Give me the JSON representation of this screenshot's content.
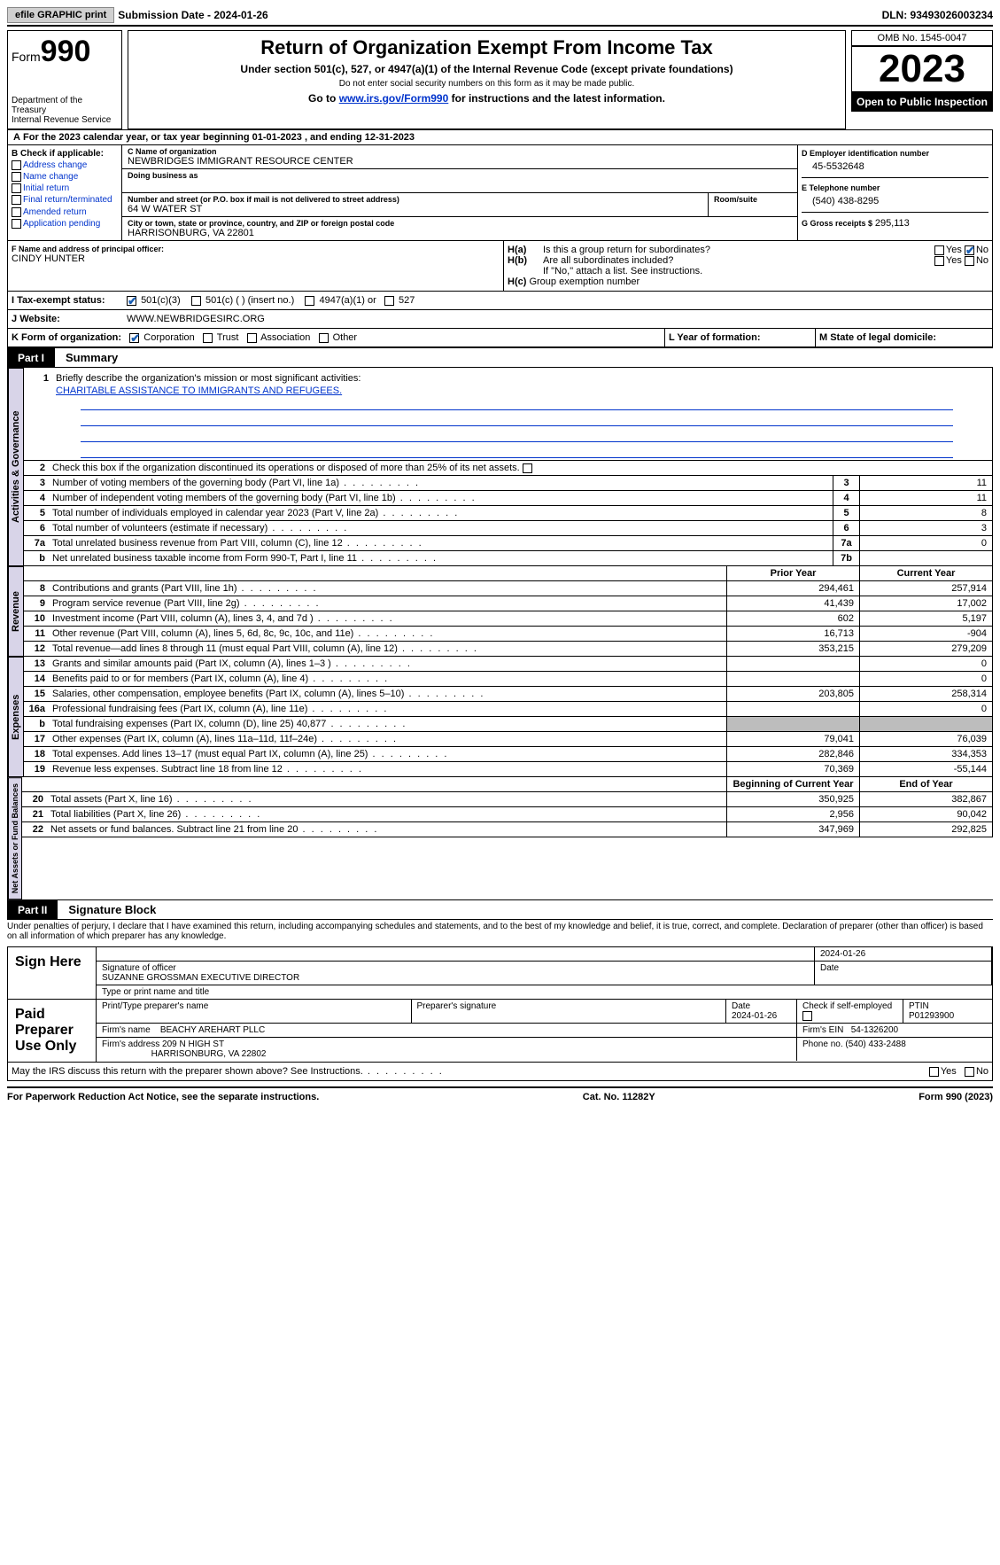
{
  "topbar": {
    "efile": "efile GRAPHIC print",
    "submission": "Submission Date - 2024-01-26",
    "dln": "DLN: 93493026003234"
  },
  "header": {
    "form_label": "Form",
    "form_num": "990",
    "dept": "Department of the Treasury",
    "irs": "Internal Revenue Service",
    "title": "Return of Organization Exempt From Income Tax",
    "sub1": "Under section 501(c), 527, or 4947(a)(1) of the Internal Revenue Code (except private foundations)",
    "sub2": "Do not enter social security numbers on this form as it may be made public.",
    "sub3_pre": "Go to ",
    "sub3_link": "www.irs.gov/Form990",
    "sub3_post": " for instructions and the latest information.",
    "omb": "OMB No. 1545-0047",
    "year": "2023",
    "inspection": "Open to Public Inspection"
  },
  "A": "For the 2023 calendar year, or tax year beginning 01-01-2023   , and ending 12-31-2023",
  "B": {
    "label": "B Check if applicable:",
    "items": [
      "Address change",
      "Name change",
      "Initial return",
      "Final return/terminated",
      "Amended return",
      "Application pending"
    ]
  },
  "C": {
    "name_label": "C Name of organization",
    "name": "NEWBRIDGES IMMIGRANT RESOURCE CENTER",
    "dba_label": "Doing business as",
    "street_label": "Number and street (or P.O. box if mail is not delivered to street address)",
    "street": "64 W WATER ST",
    "room_label": "Room/suite",
    "city_label": "City or town, state or province, country, and ZIP or foreign postal code",
    "city": "HARRISONBURG, VA  22801"
  },
  "D": {
    "label": "D Employer identification number",
    "val": "45-5532648"
  },
  "E": {
    "label": "E Telephone number",
    "val": "(540) 438-8295"
  },
  "G": {
    "label": "G Gross receipts $",
    "val": "295,113"
  },
  "F": {
    "label": "F  Name and address of principal officer:",
    "val": "CINDY HUNTER"
  },
  "H": {
    "a": "Is this a group return for subordinates?",
    "b": "Are all subordinates included?",
    "note": "If \"No,\" attach a list. See instructions.",
    "c": "Group exemption number"
  },
  "I": {
    "label": "Tax-exempt status:",
    "opts": [
      "501(c)(3)",
      "501(c) (  ) (insert no.)",
      "4947(a)(1) or",
      "527"
    ]
  },
  "J": {
    "label": "Website:",
    "val": "WWW.NEWBRIDGESIRC.ORG"
  },
  "K": {
    "label": "K Form of organization:",
    "opts": [
      "Corporation",
      "Trust",
      "Association",
      "Other"
    ]
  },
  "L": "L Year of formation:",
  "M": "M State of legal domicile:",
  "part1": {
    "num": "Part I",
    "title": "Summary"
  },
  "s1": {
    "n": "1",
    "t": "Briefly describe the organization's mission or most significant activities:",
    "val": "CHARITABLE ASSISTANCE TO IMMIGRANTS AND REFUGEES."
  },
  "s2": "Check this box         if the organization discontinued its operations or disposed of more than 25% of its net assets.",
  "lines_gov": [
    {
      "n": "3",
      "t": "Number of voting members of the governing body (Part VI, line 1a)",
      "box": "3",
      "v": "11"
    },
    {
      "n": "4",
      "t": "Number of independent voting members of the governing body (Part VI, line 1b)",
      "box": "4",
      "v": "11"
    },
    {
      "n": "5",
      "t": "Total number of individuals employed in calendar year 2023 (Part V, line 2a)",
      "box": "5",
      "v": "8"
    },
    {
      "n": "6",
      "t": "Total number of volunteers (estimate if necessary)",
      "box": "6",
      "v": "3"
    },
    {
      "n": "7a",
      "t": "Total unrelated business revenue from Part VIII, column (C), line 12",
      "box": "7a",
      "v": "0"
    },
    {
      "n": "b",
      "t": "Net unrelated business taxable income from Form 990-T, Part I, line 11",
      "box": "7b",
      "v": ""
    }
  ],
  "hdr_rev": {
    "prior": "Prior Year",
    "curr": "Current Year"
  },
  "lines_rev": [
    {
      "n": "8",
      "t": "Contributions and grants (Part VIII, line 1h)",
      "p": "294,461",
      "c": "257,914"
    },
    {
      "n": "9",
      "t": "Program service revenue (Part VIII, line 2g)",
      "p": "41,439",
      "c": "17,002"
    },
    {
      "n": "10",
      "t": "Investment income (Part VIII, column (A), lines 3, 4, and 7d )",
      "p": "602",
      "c": "5,197"
    },
    {
      "n": "11",
      "t": "Other revenue (Part VIII, column (A), lines 5, 6d, 8c, 9c, 10c, and 11e)",
      "p": "16,713",
      "c": "-904"
    },
    {
      "n": "12",
      "t": "Total revenue—add lines 8 through 11 (must equal Part VIII, column (A), line 12)",
      "p": "353,215",
      "c": "279,209"
    }
  ],
  "lines_exp": [
    {
      "n": "13",
      "t": "Grants and similar amounts paid (Part IX, column (A), lines 1–3 )",
      "p": "",
      "c": "0"
    },
    {
      "n": "14",
      "t": "Benefits paid to or for members (Part IX, column (A), line 4)",
      "p": "",
      "c": "0"
    },
    {
      "n": "15",
      "t": "Salaries, other compensation, employee benefits (Part IX, column (A), lines 5–10)",
      "p": "203,805",
      "c": "258,314"
    },
    {
      "n": "16a",
      "t": "Professional fundraising fees (Part IX, column (A), line 11e)",
      "p": "",
      "c": "0"
    },
    {
      "n": "b",
      "t": "Total fundraising expenses (Part IX, column (D), line 25) 40,877",
      "p": "SHADE",
      "c": "SHADE"
    },
    {
      "n": "17",
      "t": "Other expenses (Part IX, column (A), lines 11a–11d, 11f–24e)",
      "p": "79,041",
      "c": "76,039"
    },
    {
      "n": "18",
      "t": "Total expenses. Add lines 13–17 (must equal Part IX, column (A), line 25)",
      "p": "282,846",
      "c": "334,353"
    },
    {
      "n": "19",
      "t": "Revenue less expenses. Subtract line 18 from line 12",
      "p": "70,369",
      "c": "-55,144"
    }
  ],
  "hdr_net": {
    "prior": "Beginning of Current Year",
    "curr": "End of Year"
  },
  "lines_net": [
    {
      "n": "20",
      "t": "Total assets (Part X, line 16)",
      "p": "350,925",
      "c": "382,867"
    },
    {
      "n": "21",
      "t": "Total liabilities (Part X, line 26)",
      "p": "2,956",
      "c": "90,042"
    },
    {
      "n": "22",
      "t": "Net assets or fund balances. Subtract line 21 from line 20",
      "p": "347,969",
      "c": "292,825"
    }
  ],
  "vert": {
    "gov": "Activities & Governance",
    "rev": "Revenue",
    "exp": "Expenses",
    "net": "Net Assets or Fund Balances"
  },
  "part2": {
    "num": "Part II",
    "title": "Signature Block"
  },
  "penalty": "Under penalties of perjury, I declare that I have examined this return, including accompanying schedules and statements, and to the best of my knowledge and belief, it is true, correct, and complete. Declaration of preparer (other than officer) is based on all information of which preparer has any knowledge.",
  "sign": {
    "here": "Sign Here",
    "date": "2024-01-26",
    "sig_label": "Signature of officer",
    "date_label": "Date",
    "officer": "SUZANNE GROSSMAN EXECUTIVE DIRECTOR",
    "type_label": "Type or print name and title"
  },
  "paid": {
    "label": "Paid Preparer Use Only",
    "print_label": "Print/Type preparer's name",
    "sig_label": "Preparer's signature",
    "date_label": "Date",
    "date": "2024-01-26",
    "check_label": "Check         if self-employed",
    "ptin_label": "PTIN",
    "ptin": "P01293900",
    "firm_name_label": "Firm's name",
    "firm_name": "BEACHY AREHART PLLC",
    "firm_ein_label": "Firm's EIN",
    "firm_ein": "54-1326200",
    "firm_addr_label": "Firm's address",
    "firm_addr1": "209 N HIGH ST",
    "firm_addr2": "HARRISONBURG, VA  22802",
    "phone_label": "Phone no.",
    "phone": "(540) 433-2488"
  },
  "discuss": "May the IRS discuss this return with the preparer shown above? See Instructions.",
  "footer": {
    "left": "For Paperwork Reduction Act Notice, see the separate instructions.",
    "mid": "Cat. No. 11282Y",
    "right_pre": "Form ",
    "right_bold": "990",
    "right_post": " (2023)"
  },
  "yn": {
    "yes": "Yes",
    "no": "No"
  }
}
